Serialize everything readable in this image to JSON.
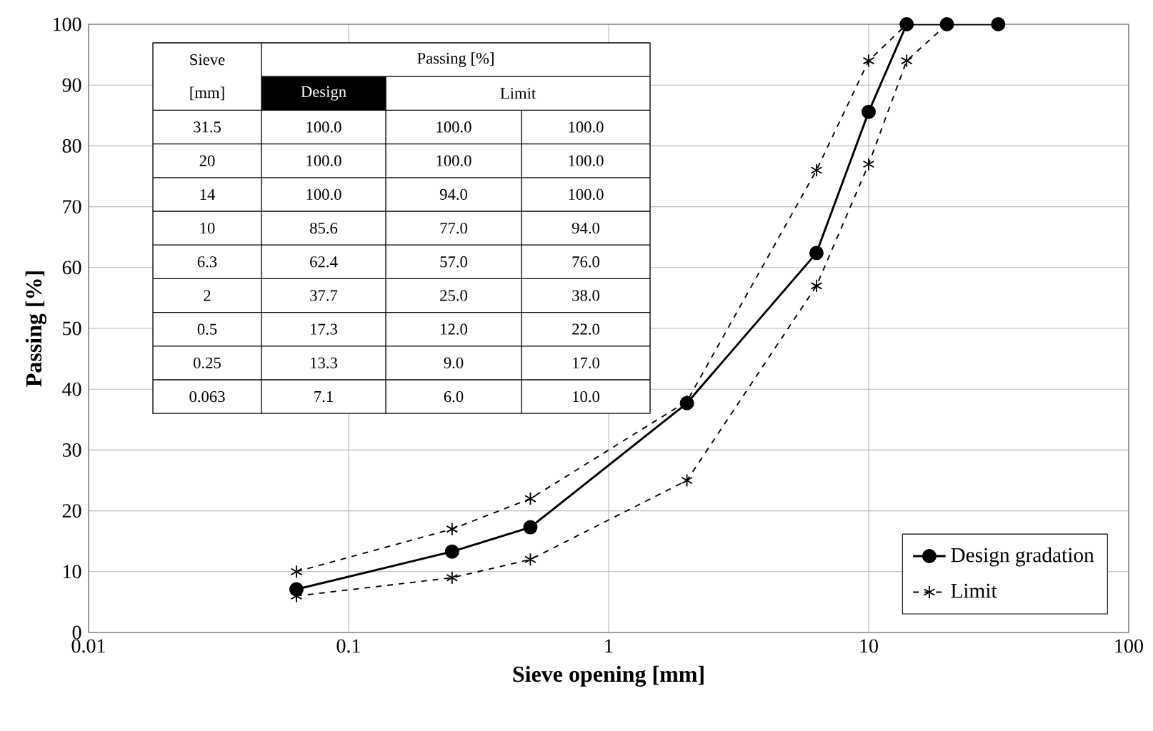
{
  "chart_data": [
    {
      "type": "line",
      "xlabel": "Sieve opening [mm]",
      "ylabel": "Passing [%]",
      "log": "x",
      "xlim": [
        0.01,
        100
      ],
      "xticks": [
        0.01,
        0.1,
        1,
        10,
        100
      ],
      "ylim": [
        0,
        100
      ],
      "yticks": [
        0,
        10,
        20,
        30,
        40,
        50,
        60,
        70,
        80,
        90,
        100
      ],
      "grid": true,
      "legend": "bottom right",
      "series": [
        {
          "name": "Design gradation",
          "color": "#000000",
          "marker": "circle",
          "line_style": "solid",
          "x": [
            0.063,
            0.25,
            0.5,
            2,
            6.3,
            10,
            14,
            20,
            31.5
          ],
          "values": [
            7.1,
            13.3,
            17.3,
            37.7,
            62.4,
            85.6,
            100,
            100,
            100
          ]
        },
        {
          "name": "Limit",
          "color": "#000000",
          "marker": "cross",
          "line_style": "dashed",
          "x": [
            0.063,
            0.25,
            0.5,
            2,
            6.3,
            10,
            14,
            20,
            31.5
          ],
          "values": [
            6,
            9,
            12,
            25,
            57,
            77,
            94,
            100,
            100
          ]
        },
        {
          "color": "#000000",
          "marker": "cross",
          "line_style": "dashed",
          "x": [
            0.063,
            0.25,
            0.5,
            2,
            6.3,
            10,
            14,
            20,
            31.5
          ],
          "values": [
            10,
            17,
            22,
            38,
            76,
            94,
            100,
            100,
            100
          ]
        }
      ]
    },
    {
      "type": "other",
      "annotations": [
        "Sieve",
        "[mm]",
        "Passing [%]",
        "Design",
        "Limit",
        "31.5",
        "100.0",
        "100.0",
        "100.0",
        "20",
        "100.0",
        "100.0",
        "100.0",
        "14",
        "100.0",
        "94.0",
        "100.0",
        "10",
        "85.6",
        "77.0",
        "94.0",
        "6.3",
        "62.4",
        "57.0",
        "76.0",
        "2",
        "37.7",
        "25.0",
        "38.0",
        "0.5",
        "17.3",
        "12.0",
        "22.0",
        "0.25",
        "13.3",
        "9.0",
        "17.0",
        "0.063",
        "7.1",
        "6.0",
        "10.0"
      ]
    }
  ]
}
